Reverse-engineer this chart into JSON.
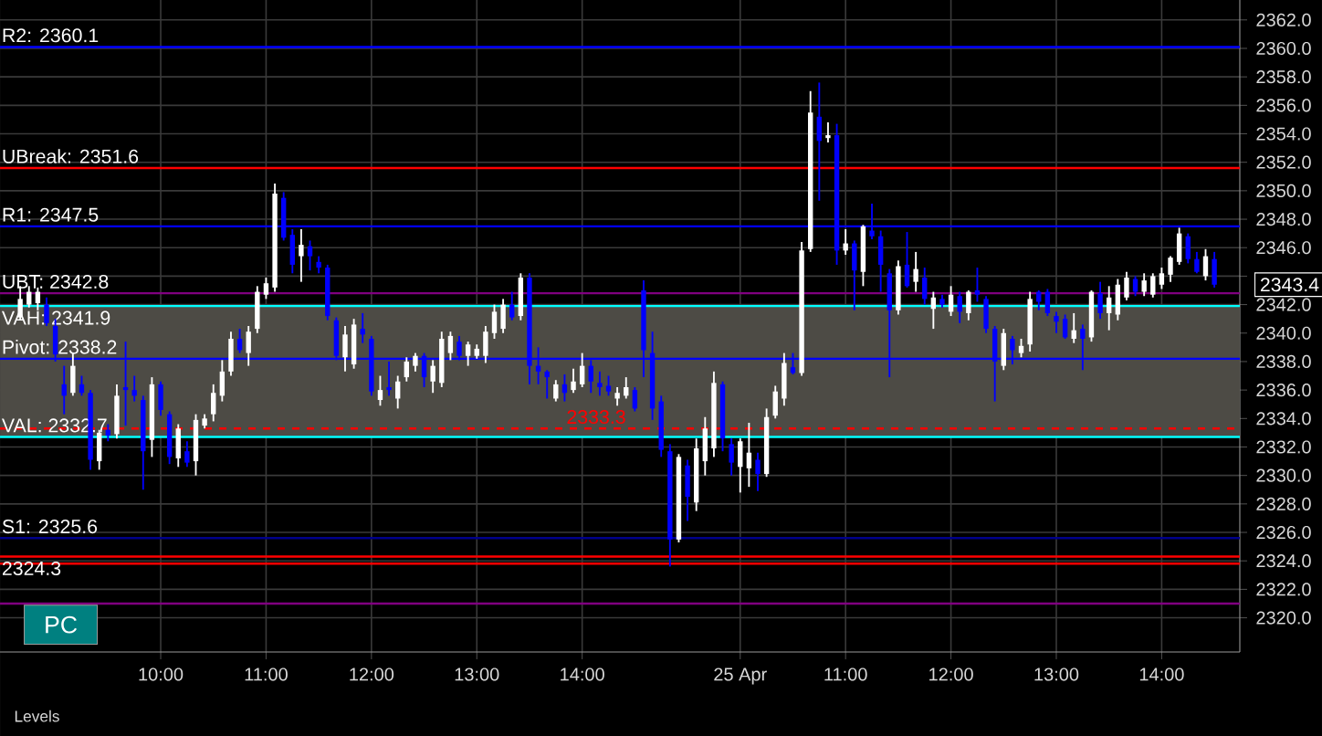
{
  "chart_data": {
    "type": "candlestick",
    "categories": [
      null,
      null,
      null,
      null,
      null,
      null,
      null,
      null,
      null,
      null,
      null,
      null,
      null,
      null,
      null,
      null,
      "10:00",
      null,
      null,
      null,
      null,
      null,
      null,
      null,
      null,
      null,
      null,
      null,
      "11:00",
      null,
      null,
      null,
      null,
      null,
      null,
      null,
      null,
      null,
      null,
      null,
      "12:00",
      null,
      null,
      null,
      null,
      null,
      null,
      null,
      null,
      null,
      null,
      null,
      "13:00",
      null,
      null,
      null,
      null,
      null,
      null,
      null,
      null,
      null,
      null,
      null,
      "14:00",
      null,
      null,
      null,
      null,
      null,
      null,
      null,
      null,
      null,
      null,
      null,
      null,
      null,
      null,
      null,
      null,
      null,
      "25 Apr",
      null,
      null,
      null,
      null,
      null,
      null,
      null,
      null,
      null,
      null,
      null,
      "11:00",
      null,
      null,
      null,
      null,
      null,
      null,
      null,
      null,
      null,
      null,
      null,
      "12:00",
      null,
      null,
      null,
      null,
      null,
      null,
      null,
      null,
      null,
      null,
      null,
      "13:00",
      null,
      null,
      null,
      null,
      null,
      null,
      null,
      null,
      null,
      null,
      null,
      "14:00",
      null,
      null,
      null,
      null,
      null,
      null
    ],
    "ohlc": [
      [
        2341.1,
        2343.3,
        2340.9,
        2342.4
      ],
      [
        2342.0,
        2343.3,
        2341.8,
        2342.9
      ],
      [
        2342.1,
        2343.2,
        2341.6,
        2342.9
      ],
      [
        2342.0,
        2342.5,
        2340.5,
        2340.7
      ],
      [
        2340.5,
        2341.0,
        2338.0,
        2338.5
      ],
      [
        2336.4,
        2337.7,
        2334.3,
        2335.6
      ],
      [
        2335.8,
        2338.6,
        2335.6,
        2337.7
      ],
      [
        2336.4,
        2337.0,
        2335.6,
        2335.8
      ],
      [
        2335.8,
        2336.0,
        2330.4,
        2331.1
      ],
      [
        2331.0,
        2333.2,
        2330.4,
        2333.0
      ],
      [
        2333.2,
        2333.6,
        2332.4,
        2332.8
      ],
      [
        2332.9,
        2336.4,
        2332.6,
        2335.6
      ],
      [
        2336.2,
        2339.4,
        2333.5,
        2336.0
      ],
      [
        2336.0,
        2337.0,
        2335.2,
        2335.6
      ],
      [
        2335.3,
        2335.6,
        2329.0,
        2331.7
      ],
      [
        2332.5,
        2336.9,
        2331.3,
        2336.4
      ],
      [
        2336.4,
        2336.6,
        2334.2,
        2334.6
      ],
      [
        2334.3,
        2334.5,
        2330.8,
        2331.3
      ],
      [
        2331.2,
        2333.6,
        2330.6,
        2333.3
      ],
      [
        2331.7,
        2332.4,
        2330.6,
        2330.9
      ],
      [
        2331.0,
        2334.3,
        2330.0,
        2333.9
      ],
      [
        2333.5,
        2334.3,
        2333.3,
        2334.0
      ],
      [
        2334.3,
        2336.4,
        2333.8,
        2335.8
      ],
      [
        2335.6,
        2338.1,
        2335.2,
        2337.3
      ],
      [
        2337.3,
        2340.1,
        2337.0,
        2339.6
      ],
      [
        2339.6,
        2340.3,
        2338.6,
        2338.8
      ],
      [
        2338.6,
        2340.5,
        2337.7,
        2340.1
      ],
      [
        2340.3,
        2343.3,
        2340.0,
        2342.9
      ],
      [
        2342.7,
        2343.9,
        2342.4,
        2343.5
      ],
      [
        2343.2,
        2350.5,
        2342.9,
        2349.8
      ],
      [
        2349.5,
        2349.9,
        2346.5,
        2346.7
      ],
      [
        2346.9,
        2347.3,
        2344.2,
        2344.8
      ],
      [
        2345.4,
        2347.3,
        2343.6,
        2346.2
      ],
      [
        2346.1,
        2346.5,
        2344.4,
        2345.4
      ],
      [
        2345.0,
        2345.4,
        2344.2,
        2344.6
      ],
      [
        2344.6,
        2344.8,
        2340.9,
        2341.2
      ],
      [
        2340.9,
        2341.1,
        2338.1,
        2338.4
      ],
      [
        2338.3,
        2340.5,
        2337.3,
        2339.9
      ],
      [
        2337.8,
        2341.0,
        2337.5,
        2340.6
      ],
      [
        2340.3,
        2341.4,
        2339.3,
        2339.9
      ],
      [
        2339.6,
        2339.8,
        2335.6,
        2335.9
      ],
      [
        2335.3,
        2337.0,
        2334.9,
        2336.0
      ],
      [
        2336.2,
        2338.0,
        2335.6,
        2336.0
      ],
      [
        2335.4,
        2337.0,
        2334.7,
        2336.6
      ],
      [
        2336.9,
        2338.3,
        2336.6,
        2338.0
      ],
      [
        2337.7,
        2338.6,
        2337.3,
        2338.4
      ],
      [
        2338.4,
        2338.6,
        2336.2,
        2336.9
      ],
      [
        2336.6,
        2338.1,
        2335.8,
        2337.7
      ],
      [
        2336.5,
        2340.1,
        2336.2,
        2339.6
      ],
      [
        2338.6,
        2340.1,
        2338.1,
        2339.8
      ],
      [
        2339.4,
        2339.8,
        2338.1,
        2338.4
      ],
      [
        2338.4,
        2339.4,
        2337.7,
        2339.2
      ],
      [
        2338.4,
        2339.2,
        2338.2,
        2338.9
      ],
      [
        2338.4,
        2340.5,
        2337.9,
        2340.1
      ],
      [
        2340.0,
        2342.0,
        2339.6,
        2341.5
      ],
      [
        2340.3,
        2342.4,
        2340.0,
        2342.0
      ],
      [
        2342.0,
        2342.9,
        2340.9,
        2341.1
      ],
      [
        2341.2,
        2344.2,
        2340.9,
        2343.9
      ],
      [
        2343.9,
        2344.2,
        2336.4,
        2337.7
      ],
      [
        2337.7,
        2339.0,
        2336.4,
        2337.3
      ],
      [
        2337.3,
        2337.4,
        2335.4,
        2336.9
      ],
      [
        2335.4,
        2336.7,
        2335.2,
        2336.4
      ],
      [
        2336.4,
        2337.1,
        2335.2,
        2335.8
      ],
      [
        2336.0,
        2337.5,
        2335.8,
        2336.6
      ],
      [
        2336.4,
        2338.6,
        2336.2,
        2337.7
      ],
      [
        2337.7,
        2338.1,
        2335.8,
        2336.6
      ],
      [
        2336.5,
        2337.3,
        2335.6,
        2336.2
      ],
      [
        2336.3,
        2337.0,
        2335.6,
        2335.9
      ],
      [
        2335.4,
        2336.2,
        2334.9,
        2335.8
      ],
      [
        2335.6,
        2336.9,
        2335.4,
        2336.2
      ],
      [
        2336.0,
        2336.2,
        2334.5,
        2334.7
      ],
      [
        2343.0,
        2343.7,
        2336.9,
        2338.8
      ],
      [
        2338.6,
        2340.1,
        2333.9,
        2334.7
      ],
      [
        2335.2,
        2335.6,
        2331.3,
        2331.8
      ],
      [
        2331.7,
        2332.2,
        2323.6,
        2325.5
      ],
      [
        2325.5,
        2331.5,
        2325.3,
        2331.3
      ],
      [
        2330.7,
        2331.1,
        2326.8,
        2328.5
      ],
      [
        2328.1,
        2332.6,
        2327.5,
        2331.9
      ],
      [
        2331.0,
        2334.1,
        2330.0,
        2333.3
      ],
      [
        2331.9,
        2337.3,
        2331.3,
        2336.5
      ],
      [
        2336.4,
        2336.6,
        2331.7,
        2332.6
      ],
      [
        2332.2,
        2332.6,
        2330.0,
        2330.9
      ],
      [
        2330.6,
        2332.6,
        2328.8,
        2332.4
      ],
      [
        2330.5,
        2333.7,
        2329.2,
        2331.6
      ],
      [
        2331.1,
        2331.6,
        2328.9,
        2330.1
      ],
      [
        2330.1,
        2334.7,
        2329.9,
        2334.1
      ],
      [
        2334.2,
        2336.3,
        2334.0,
        2335.9
      ],
      [
        2335.4,
        2338.6,
        2334.9,
        2337.9
      ],
      [
        2337.6,
        2338.6,
        2337.1,
        2337.2
      ],
      [
        2337.2,
        2346.4,
        2337.0,
        2345.8
      ],
      [
        2345.9,
        2357.0,
        2345.7,
        2355.5
      ],
      [
        2355.2,
        2357.6,
        2349.3,
        2353.5
      ],
      [
        2353.7,
        2354.8,
        2353.4,
        2353.9
      ],
      [
        2353.9,
        2354.7,
        2344.8,
        2345.8
      ],
      [
        2345.8,
        2347.3,
        2345.5,
        2346.3
      ],
      [
        2346.3,
        2346.5,
        2341.6,
        2344.4
      ],
      [
        2344.3,
        2347.6,
        2343.3,
        2347.5
      ],
      [
        2347.2,
        2349.1,
        2346.6,
        2346.8
      ],
      [
        2346.8,
        2347.2,
        2342.9,
        2344.8
      ],
      [
        2344.2,
        2344.5,
        2336.9,
        2341.6
      ],
      [
        2341.6,
        2345.1,
        2341.3,
        2344.7
      ],
      [
        2344.8,
        2347.1,
        2343.2,
        2343.3
      ],
      [
        2343.6,
        2345.7,
        2342.9,
        2344.5
      ],
      [
        2343.9,
        2344.6,
        2342.0,
        2342.4
      ],
      [
        2341.7,
        2342.9,
        2340.3,
        2342.5
      ],
      [
        2342.4,
        2342.7,
        2341.8,
        2342.0
      ],
      [
        2341.5,
        2343.3,
        2341.2,
        2342.7
      ],
      [
        2342.6,
        2342.9,
        2340.7,
        2341.5
      ],
      [
        2341.4,
        2343.0,
        2340.9,
        2342.9
      ],
      [
        2343.0,
        2344.6,
        2342.2,
        2342.7
      ],
      [
        2342.4,
        2342.6,
        2340.0,
        2340.3
      ],
      [
        2340.3,
        2340.5,
        2335.2,
        2338.0
      ],
      [
        2337.7,
        2340.3,
        2337.4,
        2340.0
      ],
      [
        2339.6,
        2339.8,
        2337.8,
        2338.8
      ],
      [
        2338.6,
        2339.6,
        2338.3,
        2339.1
      ],
      [
        2339.2,
        2342.9,
        2338.7,
        2342.4
      ],
      [
        2342.9,
        2343.0,
        2341.6,
        2342.2
      ],
      [
        2342.9,
        2343.1,
        2341.2,
        2341.4
      ],
      [
        2341.2,
        2341.5,
        2340.0,
        2340.8
      ],
      [
        2341.0,
        2341.3,
        2339.6,
        2339.7
      ],
      [
        2339.6,
        2341.4,
        2339.3,
        2340.2
      ],
      [
        2340.3,
        2340.6,
        2337.4,
        2339.6
      ],
      [
        2339.7,
        2343.0,
        2339.4,
        2342.9
      ],
      [
        2342.8,
        2343.6,
        2341.0,
        2341.4
      ],
      [
        2341.4,
        2343.3,
        2340.2,
        2342.5
      ],
      [
        2341.3,
        2343.8,
        2340.9,
        2343.4
      ],
      [
        2342.5,
        2344.3,
        2342.3,
        2343.9
      ],
      [
        2343.8,
        2344.0,
        2342.6,
        2342.9
      ],
      [
        2342.9,
        2344.2,
        2342.6,
        2343.7
      ],
      [
        2342.7,
        2344.2,
        2342.5,
        2344.0
      ],
      [
        2343.4,
        2344.6,
        2343.1,
        2344.2
      ],
      [
        2344.1,
        2345.4,
        2343.6,
        2345.3
      ],
      [
        2345.0,
        2347.4,
        2344.8,
        2347.0
      ],
      [
        2346.8,
        2347.0,
        2344.9,
        2345.2
      ],
      [
        2345.2,
        2345.7,
        2344.2,
        2344.3
      ],
      [
        2344.0,
        2345.9,
        2343.7,
        2345.4
      ],
      [
        2345.2,
        2345.7,
        2343.2,
        2343.4
      ]
    ],
    "colors": [
      "#ffffff",
      "#ffffff",
      "#ffffff",
      "#0000ff",
      "#0000ff",
      "#0000ff",
      "#ffffff",
      "#0000ff",
      "#0000ff",
      "#ffffff",
      "#0000ff",
      "#ffffff",
      "#0000ff",
      "#0000ff",
      "#0000ff",
      "#ffffff",
      "#0000ff",
      "#0000ff",
      "#ffffff",
      "#0000ff",
      "#ffffff",
      "#ffffff",
      "#ffffff",
      "#ffffff",
      "#ffffff",
      "#0000ff",
      "#ffffff",
      "#ffffff",
      "#ffffff",
      "#ffffff",
      "#0000ff",
      "#0000ff",
      "#ffffff",
      "#0000ff",
      "#0000ff",
      "#0000ff",
      "#0000ff",
      "#ffffff",
      "#ffffff",
      "#0000ff",
      "#0000ff",
      "#ffffff",
      "#0000ff",
      "#ffffff",
      "#ffffff",
      "#ffffff",
      "#0000ff",
      "#ffffff",
      "#ffffff",
      "#ffffff",
      "#0000ff",
      "#ffffff",
      "#ffffff",
      "#ffffff",
      "#ffffff",
      "#ffffff",
      "#0000ff",
      "#ffffff",
      "#0000ff",
      "#0000ff",
      "#0000ff",
      "#ffffff",
      "#0000ff",
      "#ffffff",
      "#ffffff",
      "#0000ff",
      "#0000ff",
      "#0000ff",
      "#ffffff",
      "#ffffff",
      "#0000ff",
      "#0000ff",
      "#0000ff",
      "#0000ff",
      "#0000ff",
      "#ffffff",
      "#0000ff",
      "#ffffff",
      "#ffffff",
      "#ffffff",
      "#0000ff",
      "#0000ff",
      "#ffffff",
      "#ffffff",
      "#0000ff",
      "#ffffff",
      "#ffffff",
      "#ffffff",
      "#0000ff",
      "#ffffff",
      "#ffffff",
      "#0000ff",
      "#ffffff",
      "#0000ff",
      "#ffffff",
      "#0000ff",
      "#ffffff",
      "#0000ff",
      "#0000ff",
      "#0000ff",
      "#ffffff",
      "#0000ff",
      "#ffffff",
      "#0000ff",
      "#ffffff",
      "#0000ff",
      "#ffffff",
      "#0000ff",
      "#ffffff",
      "#0000ff",
      "#0000ff",
      "#0000ff",
      "#ffffff",
      "#0000ff",
      "#ffffff",
      "#ffffff",
      "#0000ff",
      "#0000ff",
      "#0000ff",
      "#0000ff",
      "#ffffff",
      "#0000ff",
      "#ffffff",
      "#0000ff",
      "#ffffff",
      "#ffffff",
      "#ffffff",
      "#0000ff",
      "#ffffff",
      "#ffffff",
      "#ffffff",
      "#ffffff",
      "#ffffff",
      "#0000ff",
      "#0000ff",
      "#ffffff",
      "#0000ff"
    ],
    "ylim": [
      2317.6,
      2363.4
    ],
    "yticks": [
      {
        "value": 2320,
        "label": "2320.0"
      },
      {
        "value": 2322,
        "label": "2322.0"
      },
      {
        "value": 2324,
        "label": "2324.0"
      },
      {
        "value": 2326,
        "label": "2326.0"
      },
      {
        "value": 2328,
        "label": "2328.0"
      },
      {
        "value": 2330,
        "label": "2330.0"
      },
      {
        "value": 2332,
        "label": "2332.0"
      },
      {
        "value": 2334,
        "label": "2334.0"
      },
      {
        "value": 2336,
        "label": "2336.0"
      },
      {
        "value": 2338,
        "label": "2338.0"
      },
      {
        "value": 2340,
        "label": "2340.0"
      },
      {
        "value": 2342,
        "label": "2342.0"
      },
      {
        "value": 2344,
        "label": null
      },
      {
        "value": 2346,
        "label": "2346.0"
      },
      {
        "value": 2348,
        "label": "2348.0"
      },
      {
        "value": 2350,
        "label": "2350.0"
      },
      {
        "value": 2352,
        "label": "2352.0"
      },
      {
        "value": 2354,
        "label": "2354.0"
      },
      {
        "value": 2356,
        "label": "2356.0"
      },
      {
        "value": 2358,
        "label": "2358.0"
      },
      {
        "value": 2360,
        "label": "2360.0"
      },
      {
        "value": 2362,
        "label": "2362.0"
      }
    ],
    "grid": true,
    "bands": [
      {
        "axis": "y",
        "from": 2332.7,
        "to": 2341.9,
        "color": "#4d4b45"
      }
    ],
    "ref_lines": [
      {
        "axis": "y",
        "value": 2360.1,
        "label": "R2: 2360.1",
        "color": "#0000ff"
      },
      {
        "axis": "y",
        "value": 2351.6,
        "label": "UBreak: 2351.6",
        "color": "#ff0000"
      },
      {
        "axis": "y",
        "value": 2347.5,
        "label": "R1: 2347.5",
        "color": "#0000ff"
      },
      {
        "axis": "y",
        "value": 2342.8,
        "label": "UBT: 2342.8",
        "color": "#800080"
      },
      {
        "axis": "y",
        "value": 2341.9,
        "label": "VAH: 2341.9",
        "color": "#00ffff"
      },
      {
        "axis": "y",
        "value": 2338.2,
        "label": "Pivot: 2338.2",
        "color": "#0000ff"
      },
      {
        "axis": "y",
        "value": 2332.7,
        "label": "VAL: 2332.7",
        "color": "#00ffff"
      },
      {
        "axis": "y",
        "value": 2333.3,
        "label": "2333.3",
        "color": "#ff0000",
        "line_style": "dashed"
      },
      {
        "axis": "y",
        "value": 2325.6,
        "label": "S1: 2325.6",
        "color": "#00008b"
      },
      {
        "axis": "y",
        "value": 2324.3,
        "label": "2324.3",
        "color": "#ff0000"
      },
      {
        "axis": "y",
        "value": 2323.8,
        "color": "#ff0000"
      },
      {
        "axis": "y",
        "value": 2321.0,
        "color": "#800080"
      }
    ],
    "annotations": [
      "2343.4",
      "PC",
      "Levels"
    ]
  }
}
